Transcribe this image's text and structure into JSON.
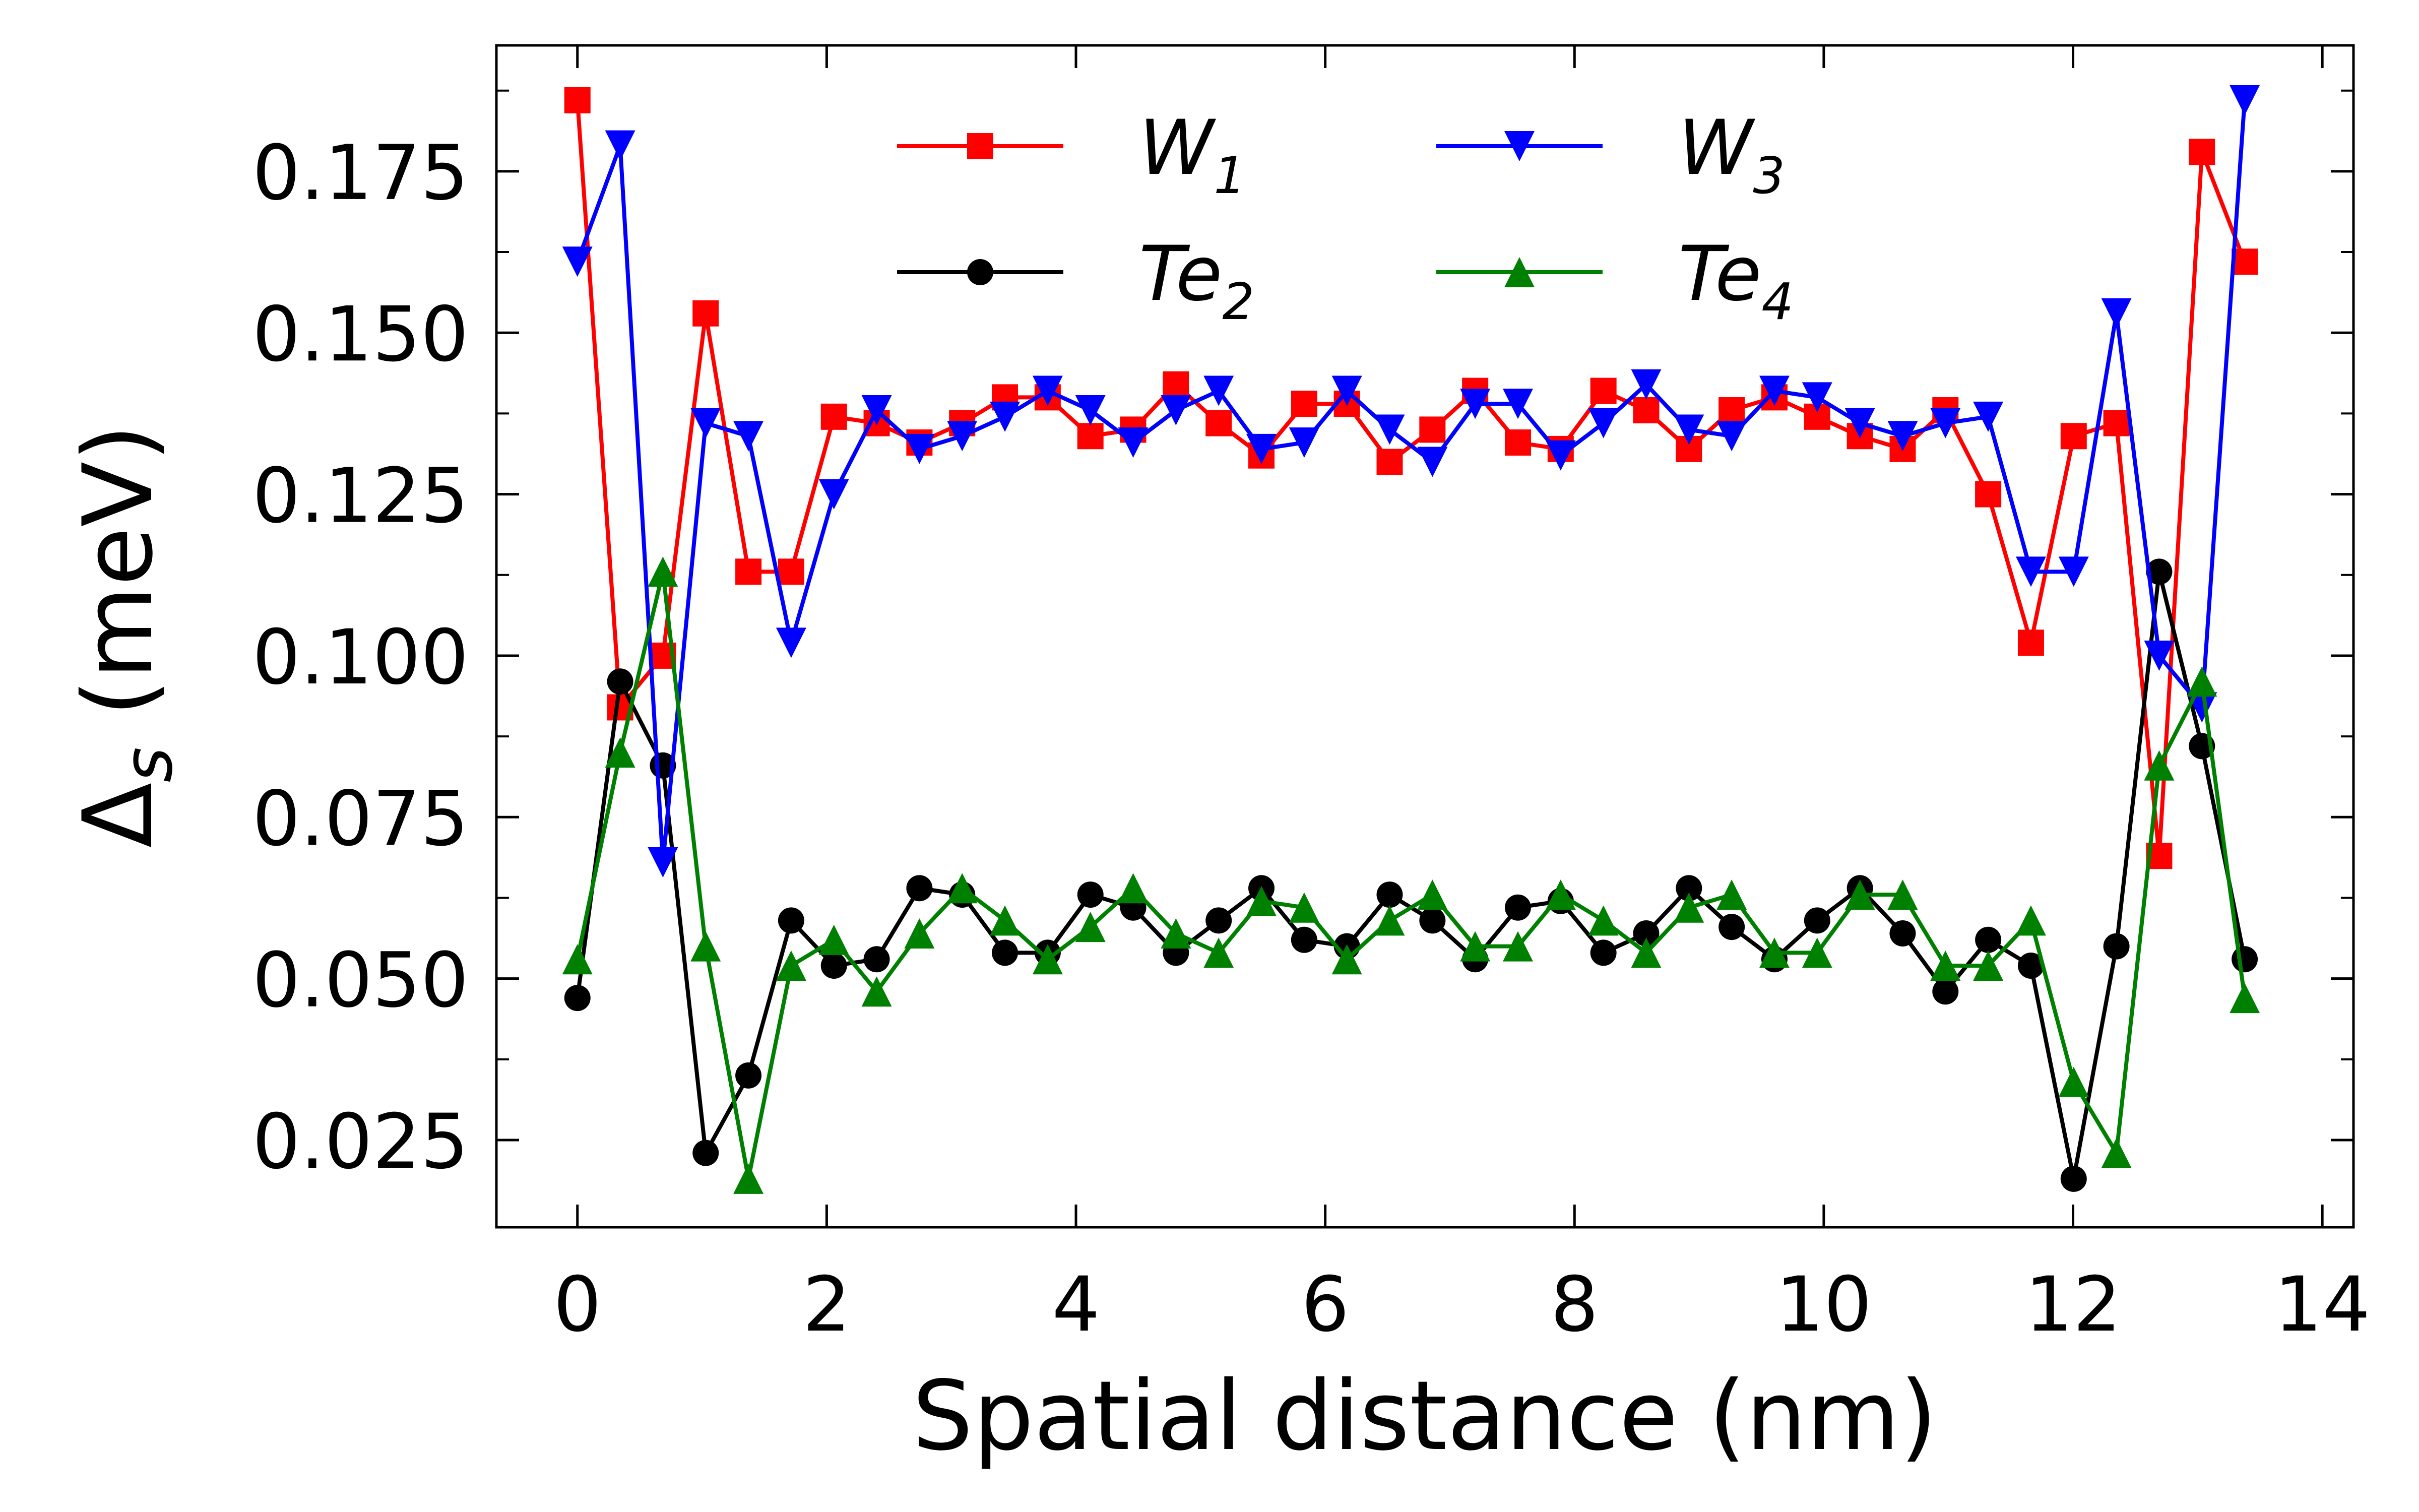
{
  "chart_data": {
    "type": "line",
    "xlabel": "Spatial distance (nm)",
    "ylabel": "Δs (meV)",
    "ylabel_parts": {
      "symbol": "Δ",
      "subscript": "s",
      "rest": " (meV)"
    },
    "xlim": [
      -0.65,
      14.25
    ],
    "ylim": [
      0.0115,
      0.1945
    ],
    "x_ticks": [
      0,
      2,
      4,
      6,
      8,
      10,
      12,
      14
    ],
    "x_tick_labels": [
      "0",
      "2",
      "4",
      "6",
      "8",
      "10",
      "12",
      "14"
    ],
    "y_ticks": [
      0.025,
      0.05,
      0.075,
      0.1,
      0.125,
      0.15,
      0.175
    ],
    "y_tick_labels": [
      "0.025",
      "0.050",
      "0.075",
      "0.100",
      "0.125",
      "0.150",
      "0.175"
    ],
    "minor_y_ticks": [
      0.0375,
      0.0625,
      0.0875,
      0.1125,
      0.1375,
      0.1625,
      0.1875
    ],
    "grid": false,
    "legend_position": "top-center",
    "legend_columns": 2,
    "x": [
      0.0,
      0.343,
      0.686,
      1.029,
      1.372,
      1.715,
      2.058,
      2.401,
      2.744,
      3.087,
      3.43,
      3.773,
      4.116,
      4.459,
      4.802,
      5.145,
      5.488,
      5.831,
      6.174,
      6.517,
      6.86,
      7.203,
      7.546,
      7.889,
      8.232,
      8.575,
      8.918,
      9.261,
      9.604,
      9.947,
      10.29,
      10.633,
      10.976,
      11.319,
      11.662,
      12.005,
      12.348,
      12.691,
      13.034,
      13.377
    ],
    "series": [
      {
        "name": "W1",
        "label_main": "W",
        "label_sub": "1",
        "color": "#ff0000",
        "marker": "square",
        "values": [
          0.186,
          0.092,
          0.1,
          0.153,
          0.113,
          0.113,
          0.137,
          0.136,
          0.133,
          0.136,
          0.14,
          0.14,
          0.134,
          0.135,
          0.142,
          0.136,
          0.131,
          0.139,
          0.139,
          0.13,
          0.135,
          0.141,
          0.133,
          0.132,
          0.141,
          0.138,
          0.132,
          0.138,
          0.14,
          0.137,
          0.134,
          0.132,
          0.138,
          0.125,
          0.102,
          0.134,
          0.136,
          0.069,
          0.178,
          0.161
        ]
      },
      {
        "name": "Te2",
        "label_main": "Te",
        "label_sub": "2",
        "color": "#000000",
        "marker": "circle",
        "values": [
          0.047,
          0.096,
          0.083,
          0.023,
          0.035,
          0.059,
          0.052,
          0.053,
          0.064,
          0.063,
          0.054,
          0.054,
          0.063,
          0.061,
          0.054,
          0.059,
          0.064,
          0.056,
          0.055,
          0.063,
          0.059,
          0.053,
          0.061,
          0.062,
          0.054,
          0.057,
          0.064,
          0.058,
          0.053,
          0.059,
          0.064,
          0.057,
          0.048,
          0.056,
          0.052,
          0.019,
          0.055,
          0.113,
          0.086,
          0.053
        ]
      },
      {
        "name": "W3",
        "label_main": "W",
        "label_sub": "3",
        "color": "#0000ff",
        "marker": "triangle-down",
        "values": [
          0.161,
          0.179,
          0.068,
          0.136,
          0.134,
          0.102,
          0.125,
          0.138,
          0.132,
          0.134,
          0.137,
          0.141,
          0.138,
          0.133,
          0.138,
          0.141,
          0.132,
          0.133,
          0.141,
          0.135,
          0.13,
          0.139,
          0.139,
          0.131,
          0.136,
          0.142,
          0.135,
          0.134,
          0.141,
          0.14,
          0.136,
          0.134,
          0.136,
          0.137,
          0.113,
          0.113,
          0.153,
          0.1,
          0.092,
          0.186
        ]
      },
      {
        "name": "Te4",
        "label_main": "Te",
        "label_sub": "4",
        "color": "#008000",
        "marker": "triangle-up",
        "values": [
          0.053,
          0.085,
          0.113,
          0.055,
          0.019,
          0.052,
          0.056,
          0.048,
          0.057,
          0.064,
          0.059,
          0.053,
          0.058,
          0.064,
          0.057,
          0.054,
          0.062,
          0.061,
          0.053,
          0.059,
          0.063,
          0.055,
          0.055,
          0.063,
          0.059,
          0.054,
          0.061,
          0.063,
          0.054,
          0.054,
          0.063,
          0.063,
          0.052,
          0.052,
          0.059,
          0.034,
          0.023,
          0.083,
          0.096,
          0.047
        ]
      }
    ]
  }
}
